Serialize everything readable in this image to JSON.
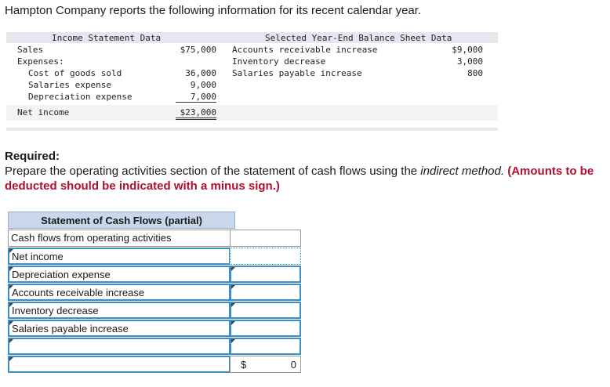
{
  "intro": "Hampton Company reports the following information for its recent calendar year.",
  "income_statement": {
    "header": "Income Statement Data",
    "sales_label": "Sales",
    "sales_value": "$75,000",
    "expenses_label": "Expenses:",
    "items": [
      {
        "label": "Cost of goods sold",
        "value": "36,000"
      },
      {
        "label": "Salaries expense",
        "value": "9,000"
      },
      {
        "label": "Depreciation expense",
        "value": "7,000"
      }
    ],
    "net_income_label": "Net income",
    "net_income_value": "$23,000"
  },
  "balance_sheet": {
    "header": "Selected Year-End Balance Sheet Data",
    "items": [
      {
        "label": "Accounts receivable increase",
        "value": "$9,000"
      },
      {
        "label": "Inventory decrease",
        "value": "3,000"
      },
      {
        "label": "Salaries payable increase",
        "value": "800"
      }
    ]
  },
  "required": {
    "title": "Required:",
    "body_prefix": "Prepare the operating activities section of the statement of cash flows using the ",
    "body_italic": "indirect method.",
    "body_red": " (Amounts to be deducted should be indicated with a minus sign.)"
  },
  "cash_flow_table": {
    "title": "Statement of Cash Flows (partial)",
    "section_label": "Cash flows from operating activities",
    "rows": [
      "Net income",
      "Depreciation expense",
      "Accounts receivable increase",
      "Inventory decrease",
      "Salaries payable increase",
      ""
    ],
    "total_currency": "$",
    "total_value": "0"
  }
}
